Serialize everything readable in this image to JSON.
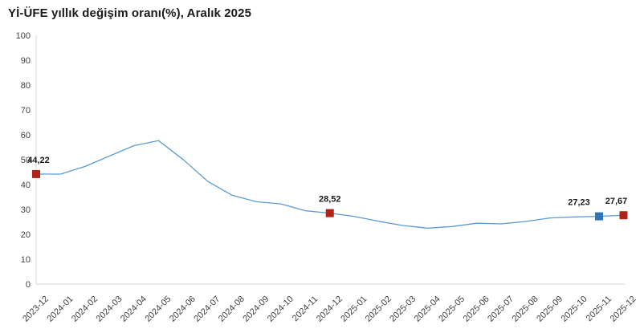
{
  "chart_data": {
    "type": "line",
    "title": "Yİ-ÜFE yıllık değişim oranı(%), Aralık 2025",
    "xlabel": "",
    "ylabel": "",
    "ylim": [
      0,
      100
    ],
    "y_ticks": [
      0,
      10,
      20,
      30,
      40,
      50,
      60,
      70,
      80,
      90,
      100
    ],
    "grid": false,
    "legend": "none",
    "categories": [
      "2023-12",
      "2024-01",
      "2024-02",
      "2024-03",
      "2024-04",
      "2024-05",
      "2024-06",
      "2024-07",
      "2024-08",
      "2024-09",
      "2024-10",
      "2024-11",
      "2024-12",
      "2025-01",
      "2025-02",
      "2025-03",
      "2025-04",
      "2025-05",
      "2025-06",
      "2025-07",
      "2025-08",
      "2025-09",
      "2025-10",
      "2025-11",
      "2025-12"
    ],
    "values": [
      44.22,
      44.2,
      47.29,
      51.47,
      55.66,
      57.68,
      50.09,
      41.37,
      35.75,
      33.09,
      32.24,
      29.47,
      28.52,
      27.2,
      25.21,
      23.5,
      22.5,
      23.13,
      24.45,
      24.19,
      25.16,
      26.59,
      27.0,
      27.23,
      27.67
    ],
    "annotations": [
      {
        "index": 0,
        "label": "44,22",
        "marker_color": "#B02318",
        "dx": 3
      },
      {
        "index": 12,
        "label": "28,52",
        "marker_color": "#B02318",
        "dx": 0
      },
      {
        "index": 23,
        "label": "27,23",
        "marker_color": "#2E75B6",
        "dx": -25
      },
      {
        "index": 24,
        "label": "27,67",
        "marker_color": "#B02318",
        "dx": -9
      }
    ],
    "colors": {
      "line": "#5B9BD5",
      "axis": "#D6D6D6",
      "tick_label": "#404040",
      "data_label": "#1a1a1a"
    }
  }
}
